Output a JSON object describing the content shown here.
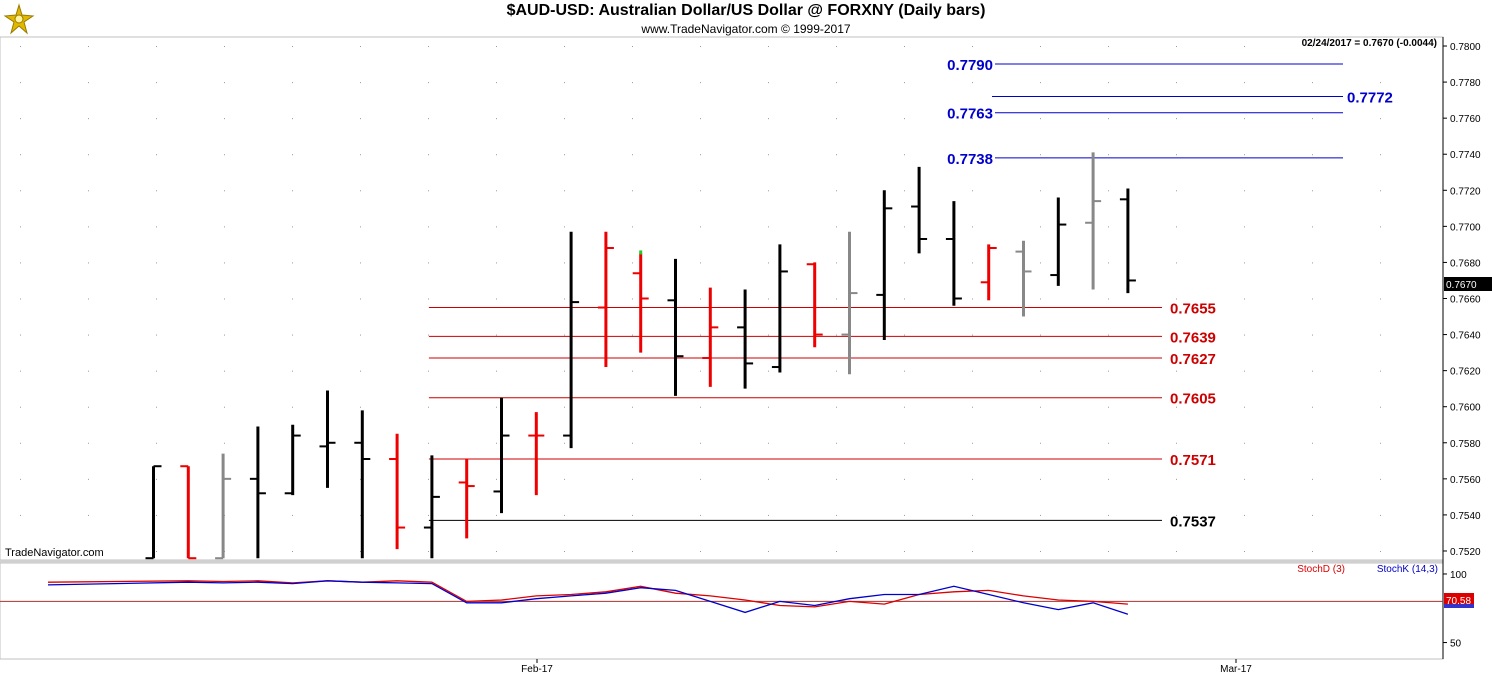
{
  "header": {
    "title": "$AUD-USD:  Australian Dollar/US Dollar @ FORXNY  (Daily bars)",
    "subtitle": "www.TradeNavigator.com © 1999-2017",
    "watermark": "TradeNavigator.com",
    "last_quote": "02/24/2017 = 0.7670 (-0.0044)"
  },
  "chart_data": [
    {
      "type": "ohlc",
      "ylim": [
        0.7515,
        0.7805
      ],
      "yticks": [
        "0.7520",
        "0.7540",
        "0.7560",
        "0.7580",
        "0.7600",
        "0.7620",
        "0.7640",
        "0.7660",
        "0.7680",
        "0.7700",
        "0.7720",
        "0.7740",
        "0.7760",
        "0.7780",
        "0.7800"
      ],
      "last_price_label": "0.7670",
      "bars": [
        {
          "o": 0.7516,
          "h": 0.7567,
          "l": 0.7516,
          "c": 0.7567,
          "color": "#000000"
        },
        {
          "o": 0.7567,
          "h": 0.7567,
          "l": 0.7516,
          "c": 0.7516,
          "color": "#ee0000"
        },
        {
          "o": 0.7516,
          "h": 0.7574,
          "l": 0.7516,
          "c": 0.756,
          "color": "#888888"
        },
        {
          "o": 0.756,
          "h": 0.7589,
          "l": 0.7516,
          "c": 0.7552,
          "color": "#000000"
        },
        {
          "o": 0.7552,
          "h": 0.759,
          "l": 0.7551,
          "c": 0.7584,
          "color": "#000000"
        },
        {
          "o": 0.7578,
          "h": 0.7609,
          "l": 0.7555,
          "c": 0.758,
          "color": "#000000"
        },
        {
          "o": 0.758,
          "h": 0.7598,
          "l": 0.7516,
          "c": 0.7571,
          "color": "#000000"
        },
        {
          "o": 0.7571,
          "h": 0.7585,
          "l": 0.7521,
          "c": 0.7533,
          "color": "#ee0000"
        },
        {
          "o": 0.7533,
          "h": 0.7573,
          "l": 0.7516,
          "c": 0.755,
          "color": "#000000"
        },
        {
          "o": 0.7558,
          "h": 0.7571,
          "l": 0.7527,
          "c": 0.7556,
          "color": "#ee0000"
        },
        {
          "o": 0.7553,
          "h": 0.7605,
          "l": 0.7541,
          "c": 0.7584,
          "color": "#000000"
        },
        {
          "o": 0.7584,
          "h": 0.7597,
          "l": 0.7551,
          "c": 0.7584,
          "color": "#ee0000"
        },
        {
          "o": 0.7584,
          "h": 0.7697,
          "l": 0.7577,
          "c": 0.7658,
          "color": "#000000"
        },
        {
          "o": 0.7655,
          "h": 0.7697,
          "l": 0.7622,
          "c": 0.7688,
          "color": "#ee0000"
        },
        {
          "o": 0.7674,
          "h": 0.7685,
          "l": 0.763,
          "c": 0.766,
          "color": "#ee0000"
        },
        {
          "o": 0.7659,
          "h": 0.7682,
          "l": 0.7606,
          "c": 0.7628,
          "color": "#000000"
        },
        {
          "o": 0.7627,
          "h": 0.7666,
          "l": 0.7611,
          "c": 0.7644,
          "color": "#ee0000"
        },
        {
          "o": 0.7644,
          "h": 0.7665,
          "l": 0.761,
          "c": 0.7624,
          "color": "#000000"
        },
        {
          "o": 0.7622,
          "h": 0.769,
          "l": 0.7619,
          "c": 0.7675,
          "color": "#000000"
        },
        {
          "o": 0.7679,
          "h": 0.768,
          "l": 0.7633,
          "c": 0.764,
          "color": "#ee0000"
        },
        {
          "o": 0.764,
          "h": 0.7697,
          "l": 0.7618,
          "c": 0.7663,
          "color": "#888888"
        },
        {
          "o": 0.7662,
          "h": 0.772,
          "l": 0.7637,
          "c": 0.771,
          "color": "#000000"
        },
        {
          "o": 0.7711,
          "h": 0.7733,
          "l": 0.7685,
          "c": 0.7693,
          "color": "#000000"
        },
        {
          "o": 0.7693,
          "h": 0.7714,
          "l": 0.7656,
          "c": 0.766,
          "color": "#000000"
        },
        {
          "o": 0.7669,
          "h": 0.769,
          "l": 0.7659,
          "c": 0.7688,
          "color": "#ee0000"
        },
        {
          "o": 0.7686,
          "h": 0.7692,
          "l": 0.765,
          "c": 0.7675,
          "color": "#888888"
        },
        {
          "o": 0.7673,
          "h": 0.7716,
          "l": 0.7667,
          "c": 0.7701,
          "color": "#000000"
        },
        {
          "o": 0.7702,
          "h": 0.7741,
          "l": 0.7665,
          "c": 0.7714,
          "color": "#888888"
        },
        {
          "o": 0.7715,
          "h": 0.7721,
          "l": 0.7663,
          "c": 0.767,
          "color": "#000000"
        }
      ],
      "levels": [
        {
          "label": "0.7790",
          "value": 0.779,
          "color": "#0000cc",
          "side": "left",
          "start_bar": 27
        },
        {
          "label": "0.7772",
          "value": 0.7772,
          "color": "#0000cc",
          "side": "right",
          "start_bar": 28
        },
        {
          "label": "0.7763",
          "value": 0.7763,
          "color": "#0000cc",
          "side": "left",
          "start_bar": 27
        },
        {
          "label": "0.7738",
          "value": 0.7738,
          "color": "#0000cc",
          "side": "left",
          "start_bar": 27
        },
        {
          "label": "0.7655",
          "value": 0.7655,
          "color": "#cc0000",
          "side": "right",
          "start_bar": 8
        },
        {
          "label": "0.7639",
          "value": 0.7639,
          "color": "#cc0000",
          "side": "right",
          "start_bar": 8
        },
        {
          "label": "0.7627",
          "value": 0.7627,
          "color": "#cc0000",
          "side": "right",
          "start_bar": 8
        },
        {
          "label": "0.7605",
          "value": 0.7605,
          "color": "#cc0000",
          "side": "right",
          "start_bar": 8
        },
        {
          "label": "0.7571",
          "value": 0.7571,
          "color": "#cc0000",
          "side": "right",
          "start_bar": 8
        },
        {
          "label": "0.7537",
          "value": 0.7537,
          "color": "#000000",
          "side": "right",
          "start_bar": 8
        }
      ]
    },
    {
      "type": "line",
      "ylim": [
        38,
        108
      ],
      "yticks": [
        "100",
        "50"
      ],
      "reference_line": 80,
      "last_value_label": "70.58",
      "series": [
        {
          "name": "StochD (3)",
          "color": "#dd0000",
          "values": [
            94,
            95,
            94.5,
            95,
            93.5,
            95,
            94,
            95,
            94,
            80,
            81,
            84,
            85,
            87,
            91,
            86,
            84,
            81,
            77,
            76,
            80,
            78,
            85,
            87,
            88,
            84,
            81,
            80,
            78
          ]
        },
        {
          "name": "StochK (14,3)",
          "color": "#0000cc",
          "values": [
            92,
            94,
            93.5,
            94,
            93,
            95,
            94,
            93.5,
            93,
            79,
            79,
            82,
            84,
            86,
            90,
            88,
            80,
            72,
            80,
            77,
            82,
            85,
            85,
            91,
            85,
            79,
            74,
            79,
            70.58
          ]
        }
      ]
    }
  ],
  "x_axis": {
    "labels": [
      "Feb-17",
      "Mar-17"
    ]
  }
}
